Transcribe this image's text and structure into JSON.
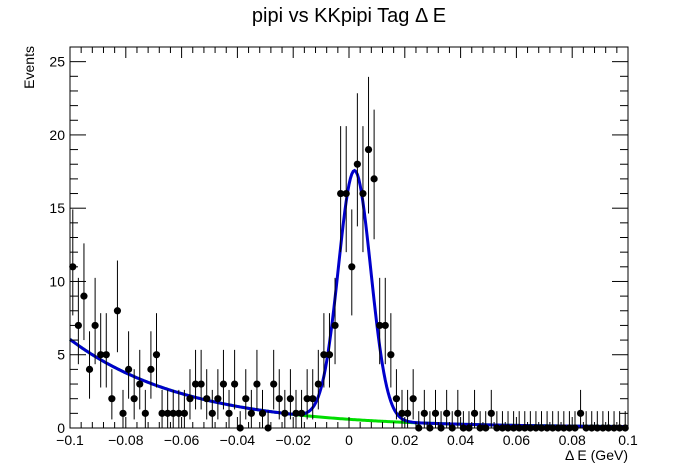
{
  "chart_data": {
    "type": "scatter",
    "title": "pipi vs KKpipi Tag Δ E",
    "xlabel": "Δ E (GeV)",
    "ylabel": "Events",
    "xlim": [
      -0.1,
      0.1
    ],
    "ylim": [
      0,
      26
    ],
    "x_ticks": [
      -0.1,
      -0.08,
      -0.06,
      -0.04,
      -0.02,
      0,
      0.02,
      0.04,
      0.06,
      0.08,
      0.1
    ],
    "x_tick_labels": [
      "−0.1",
      "−0.08",
      "−0.06",
      "−0.04",
      "−0.02",
      "0",
      "0.02",
      "0.04",
      "0.06",
      "0.08",
      "0.1"
    ],
    "y_ticks": [
      0,
      5,
      10,
      15,
      20,
      25
    ],
    "y_tick_labels": [
      "0",
      "5",
      "10",
      "15",
      "20",
      "25"
    ],
    "grid": false,
    "series": [
      {
        "kind": "points-with-errors",
        "color": "#000000",
        "x": [
          -0.099,
          -0.097,
          -0.095,
          -0.093,
          -0.091,
          -0.089,
          -0.087,
          -0.085,
          -0.083,
          -0.081,
          -0.079,
          -0.077,
          -0.075,
          -0.073,
          -0.071,
          -0.069,
          -0.067,
          -0.065,
          -0.063,
          -0.061,
          -0.059,
          -0.057,
          -0.055,
          -0.053,
          -0.051,
          -0.049,
          -0.047,
          -0.045,
          -0.043,
          -0.041,
          -0.039,
          -0.037,
          -0.035,
          -0.033,
          -0.031,
          -0.029,
          -0.027,
          -0.025,
          -0.023,
          -0.021,
          -0.019,
          -0.017,
          -0.015,
          -0.013,
          -0.011,
          -0.009,
          -0.007,
          -0.005,
          -0.003,
          -0.001,
          0.001,
          0.003,
          0.005,
          0.007,
          0.009,
          0.011,
          0.013,
          0.015,
          0.017,
          0.019,
          0.021,
          0.023,
          0.025,
          0.027,
          0.029,
          0.031,
          0.033,
          0.035,
          0.037,
          0.039,
          0.041,
          0.043,
          0.045,
          0.047,
          0.049,
          0.051,
          0.053,
          0.055,
          0.057,
          0.059,
          0.061,
          0.063,
          0.065,
          0.067,
          0.069,
          0.071,
          0.073,
          0.075,
          0.077,
          0.079,
          0.081,
          0.083,
          0.085,
          0.087,
          0.089,
          0.091,
          0.093,
          0.095,
          0.097,
          0.099
        ],
        "y": [
          11,
          7,
          9,
          4,
          7,
          5,
          5,
          2,
          8,
          1,
          4,
          2,
          3,
          1,
          4,
          5,
          1,
          1,
          1,
          1,
          1,
          2,
          3,
          3,
          2,
          1,
          2,
          3,
          1,
          3,
          0,
          2,
          1,
          3,
          1,
          0,
          3,
          2,
          1,
          2,
          1,
          1,
          2,
          2,
          3,
          5,
          5,
          7,
          16,
          16,
          11,
          18,
          16,
          19,
          17,
          7,
          7,
          5,
          2,
          1,
          1,
          2,
          0,
          1,
          0,
          1,
          0,
          1,
          0,
          1,
          0,
          0,
          1,
          0,
          0,
          1,
          0,
          0,
          0,
          0,
          0,
          0,
          0,
          0,
          0,
          0,
          0,
          0,
          0,
          0,
          0,
          1,
          0,
          0,
          0,
          0,
          0,
          0,
          0,
          0
        ]
      },
      {
        "kind": "fit-curve",
        "name": "",
        "color": "#0000cc"
      },
      {
        "kind": "background-curve",
        "name": "",
        "color": "#00dd00"
      }
    ]
  }
}
